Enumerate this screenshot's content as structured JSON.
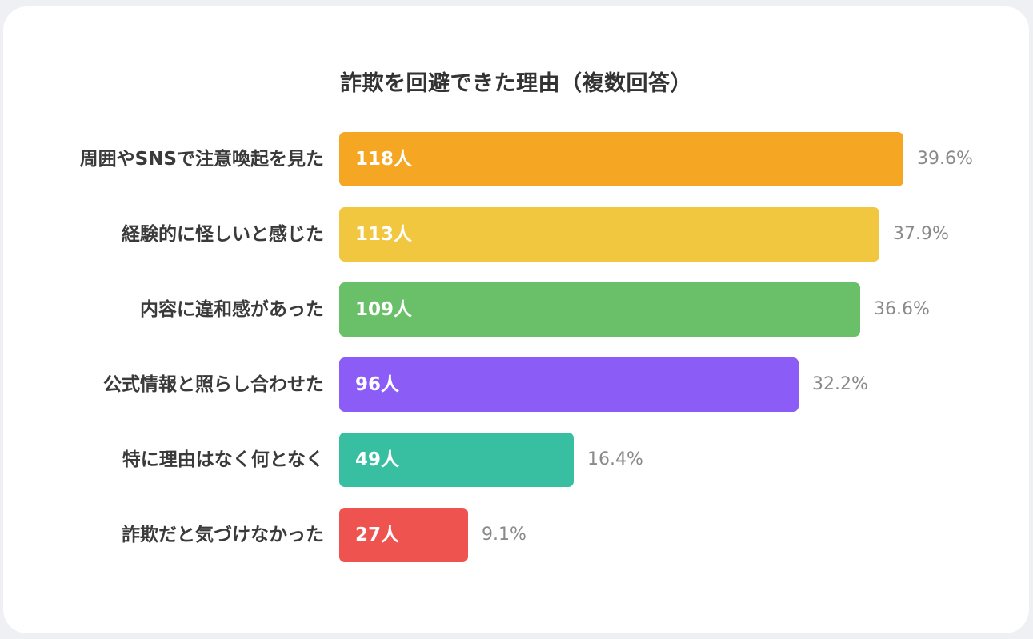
{
  "chart_data": {
    "type": "bar",
    "orientation": "horizontal",
    "title": "詐欺を回避できた理由（複数回答）",
    "categories": [
      "周囲やSNSで注意喚起を見た",
      "経験的に怪しいと感じた",
      "内容に違和感があった",
      "公式情報と照らし合わせた",
      "特に理由はなく何となく",
      "詐欺だと気づけなかった"
    ],
    "series": [
      {
        "values": [
          118,
          113,
          109,
          96,
          49,
          27
        ],
        "count_labels": [
          "118人",
          "113人",
          "109人",
          "96人",
          "49人",
          "27人"
        ],
        "percent_labels": [
          "39.6%",
          "37.9%",
          "36.6%",
          "32.2%",
          "16.4%",
          "9.1%"
        ],
        "colors": [
          "#f5a623",
          "#f2c740",
          "#6abf69",
          "#8b5cf6",
          "#38bfa1",
          "#ef5350"
        ]
      }
    ],
    "xlim": [
      0,
      118
    ],
    "grid": false,
    "legend": "none"
  }
}
